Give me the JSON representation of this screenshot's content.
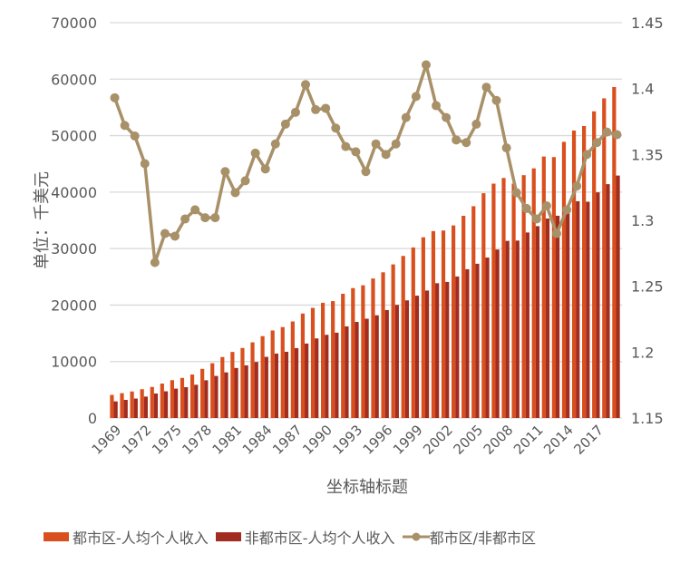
{
  "chart_data": {
    "type": "bar+line",
    "title": "",
    "xlabel": "坐标轴标题",
    "ylabel": "单位：千美元",
    "y2label": "",
    "ylim": [
      0,
      70000
    ],
    "y2lim": [
      1.15,
      1.45
    ],
    "yticks": [
      "0",
      "10000",
      "20000",
      "30000",
      "40000",
      "50000",
      "60000",
      "70000"
    ],
    "y2ticks": [
      "1.15",
      "1.2",
      "1.25",
      "1.3",
      "1.35",
      "1.4",
      "1.45"
    ],
    "grid": true,
    "legend_position": "bottom",
    "categories": [
      1969,
      1970,
      1971,
      1972,
      1973,
      1974,
      1975,
      1976,
      1977,
      1978,
      1979,
      1980,
      1981,
      1982,
      1983,
      1984,
      1985,
      1986,
      1987,
      1988,
      1989,
      1990,
      1991,
      1992,
      1993,
      1994,
      1995,
      1996,
      1997,
      1998,
      1999,
      2000,
      2001,
      2002,
      2003,
      2004,
      2005,
      2006,
      2007,
      2008,
      2009,
      2010,
      2011,
      2012,
      2013,
      2014,
      2015,
      2016,
      2017,
      2018,
      2019
    ],
    "xtick_labels": [
      "1969",
      "1972",
      "1975",
      "1978",
      "1981",
      "1984",
      "1987",
      "1990",
      "1993",
      "1996",
      "1999",
      "2002",
      "2005",
      "2008",
      "2011",
      "2014",
      "2017"
    ],
    "series": [
      {
        "name": "都市区-人均个人收入",
        "type": "bar",
        "axis": "left",
        "color": "#D9501E",
        "values": [
          4100,
          4400,
          4700,
          5100,
          5500,
          6100,
          6700,
          7100,
          7700,
          8700,
          9700,
          10800,
          11700,
          12400,
          13400,
          14500,
          15500,
          16100,
          17100,
          18500,
          19500,
          20400,
          20700,
          22000,
          23000,
          23500,
          24700,
          25800,
          27200,
          28700,
          30200,
          32000,
          33100,
          33200,
          34100,
          35800,
          37500,
          39800,
          41500,
          42500,
          41500,
          43000,
          44200,
          46300,
          46200,
          48900,
          50900,
          51700,
          54300,
          56600,
          58600
        ]
      },
      {
        "name": "非都市区-人均个人收入",
        "type": "bar",
        "axis": "left",
        "color": "#A12C20",
        "values": [
          2943,
          3207,
          3446,
          3797,
          4338,
          4729,
          5202,
          5457,
          5887,
          6682,
          7450,
          8078,
          8857,
          9323,
          9919,
          10829,
          11414,
          11726,
          12373,
          13186,
          14090,
          14729,
          15109,
          16224,
          17012,
          17577,
          18189,
          19111,
          20029,
          20827,
          21664,
          22567,
          23865,
          24093,
          25055,
          26343,
          27312,
          28408,
          29835,
          31365,
          31416,
          32850,
          33974,
          35317,
          35814,
          37385,
          38386,
          38296,
          39956,
          41404,
          42930
        ]
      },
      {
        "name": "都市区/非都市区",
        "type": "line",
        "axis": "right",
        "color": "#A89068",
        "values": [
          1.393,
          1.372,
          1.364,
          1.343,
          1.268,
          1.29,
          1.288,
          1.301,
          1.308,
          1.302,
          1.302,
          1.337,
          1.321,
          1.33,
          1.351,
          1.339,
          1.358,
          1.373,
          1.382,
          1.403,
          1.384,
          1.385,
          1.37,
          1.356,
          1.352,
          1.337,
          1.358,
          1.35,
          1.358,
          1.378,
          1.394,
          1.418,
          1.387,
          1.378,
          1.361,
          1.359,
          1.373,
          1.401,
          1.391,
          1.355,
          1.321,
          1.309,
          1.301,
          1.311,
          1.29,
          1.308,
          1.326,
          1.35,
          1.359,
          1.367,
          1.365
        ]
      }
    ]
  }
}
